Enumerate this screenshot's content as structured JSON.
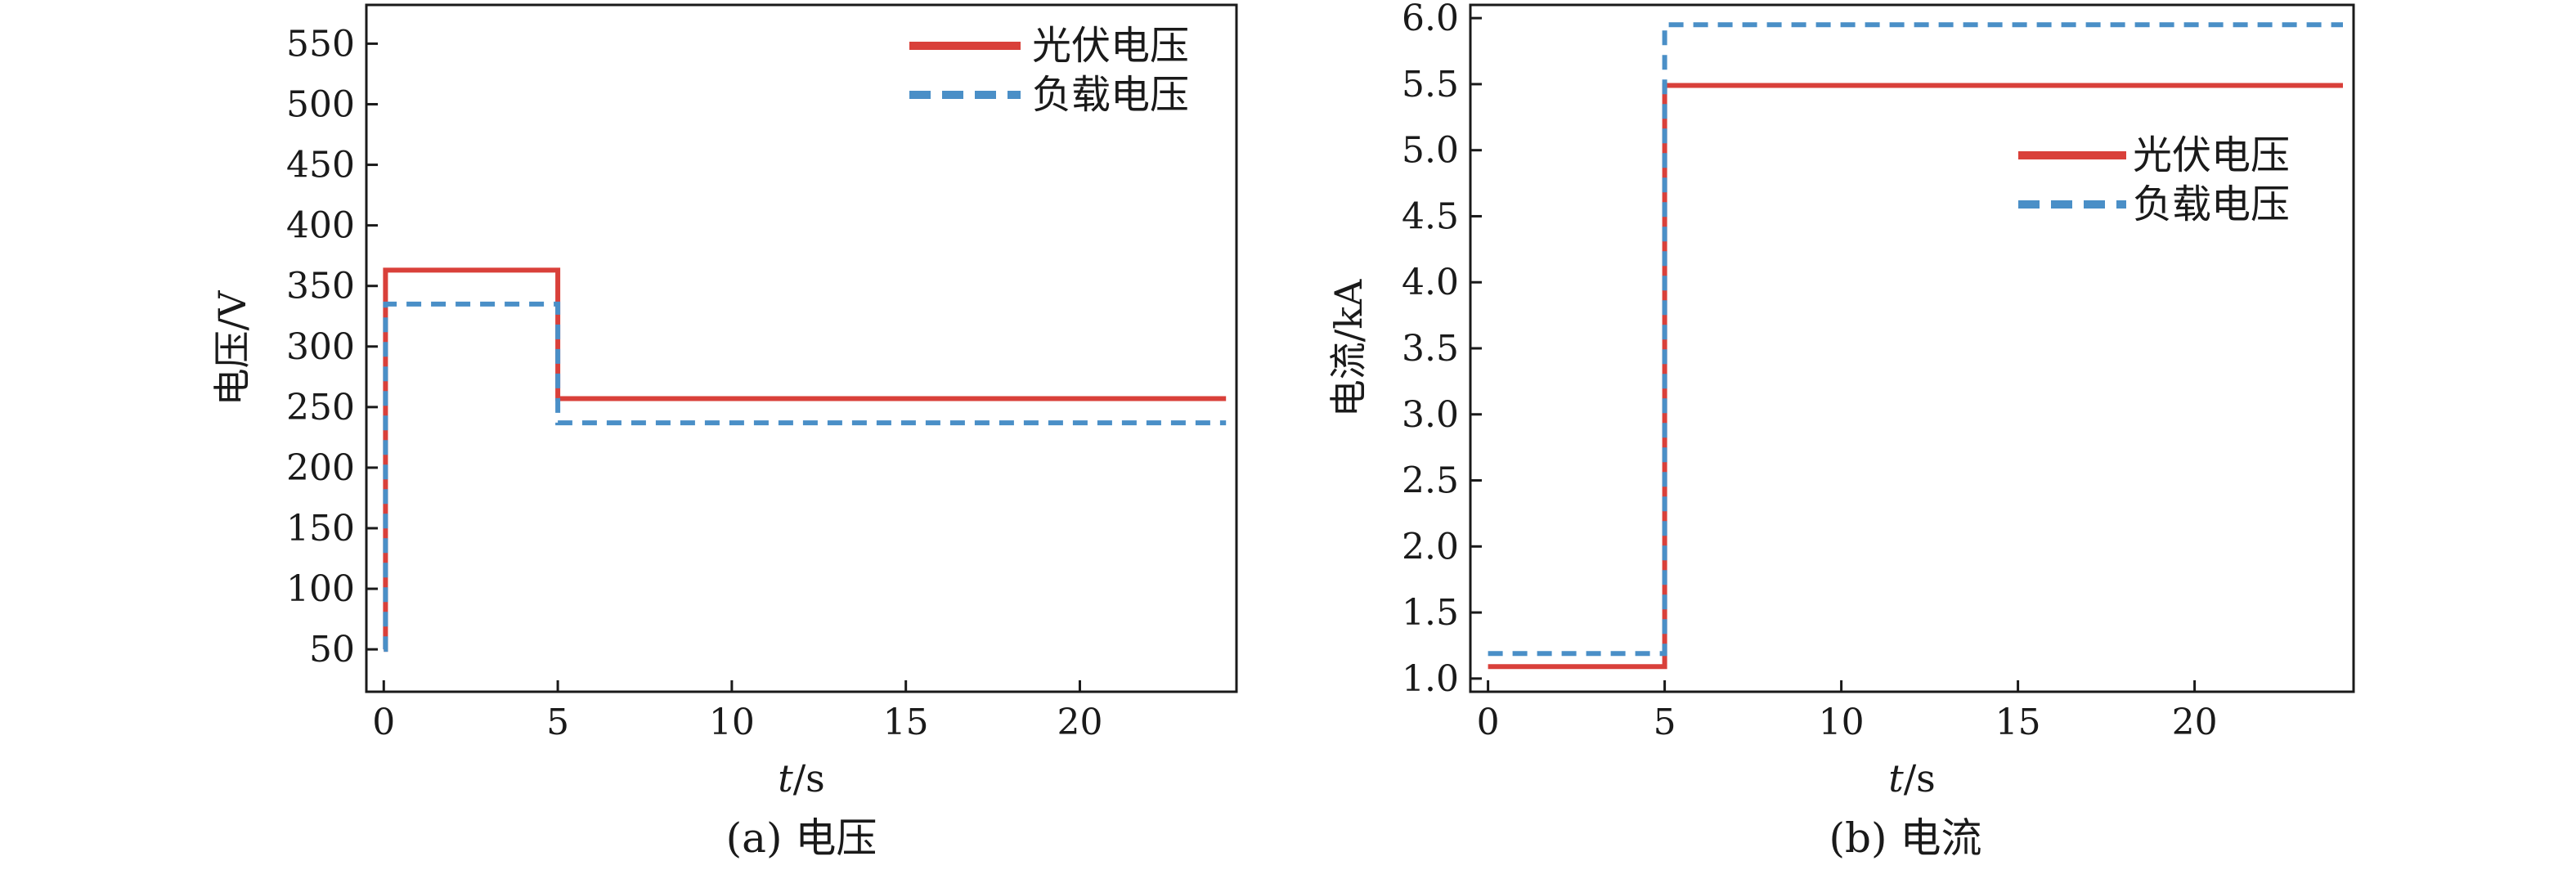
{
  "figure": {
    "captions": [
      "(a) 电压",
      "(b) 电流"
    ]
  },
  "colors": {
    "series_solid": "#d9403a",
    "series_dashed": "#4a8fc7",
    "axis": "#1a1a1a"
  },
  "chart_data": [
    {
      "type": "line",
      "xlabel_italic": "t",
      "xlabel_unit": "/s",
      "ylabel": "电压/V",
      "xlim": [
        -0.5,
        24.5
      ],
      "ylim": [
        15,
        582
      ],
      "xticks": [
        0,
        5,
        10,
        15,
        20
      ],
      "yticks": [
        50,
        100,
        150,
        200,
        250,
        300,
        350,
        400,
        450,
        500,
        550
      ],
      "ytick_decimals": 0,
      "grid": false,
      "legend_position": "top-right",
      "series": [
        {
          "name": "光伏电压",
          "style": "solid",
          "x": [
            0,
            0.05,
            0.05,
            5,
            5,
            24.2
          ],
          "y": [
            50,
            50,
            363,
            363,
            257,
            257
          ]
        },
        {
          "name": "负载电压",
          "style": "dashed",
          "x": [
            0,
            0.05,
            0.05,
            5,
            5,
            24.2
          ],
          "y": [
            50,
            50,
            335,
            335,
            237,
            237
          ]
        }
      ]
    },
    {
      "type": "line",
      "xlabel_italic": "t",
      "xlabel_unit": "/s",
      "ylabel": "电流/kA",
      "xlim": [
        -0.5,
        24.5
      ],
      "ylim": [
        0.9,
        6.1
      ],
      "xticks": [
        0,
        5,
        10,
        15,
        20
      ],
      "yticks": [
        1.0,
        1.5,
        2.0,
        2.5,
        3.0,
        3.5,
        4.0,
        4.5,
        5.0,
        5.5,
        6.0
      ],
      "ytick_decimals": 1,
      "grid": false,
      "legend_position": "upper-right",
      "series": [
        {
          "name": "光伏电压",
          "style": "solid",
          "x": [
            0,
            5,
            5,
            24.2
          ],
          "y": [
            1.09,
            1.09,
            5.49,
            5.49
          ]
        },
        {
          "name": "负载电压",
          "style": "dashed",
          "x": [
            0,
            5,
            5,
            24.2
          ],
          "y": [
            1.19,
            1.19,
            5.95,
            5.95
          ]
        }
      ]
    }
  ]
}
